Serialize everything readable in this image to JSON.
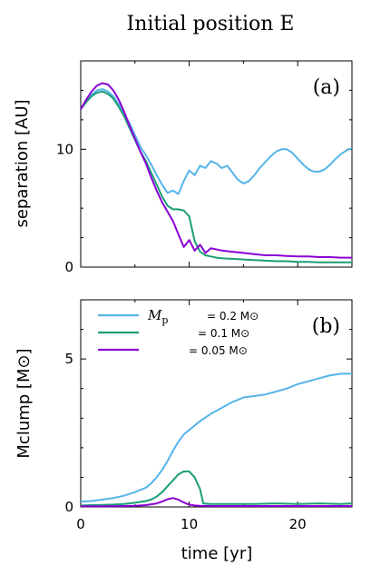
{
  "title": "Initial position E",
  "colors": {
    "m02": "#56b4e9",
    "m01": "#1b9e77",
    "m005": "#8a00d4"
  },
  "chart_data": [
    {
      "panel": "(a)",
      "type": "line",
      "ylabel": "separation [AU]",
      "xlabel": "",
      "xlim": [
        0,
        25
      ],
      "ylim": [
        0,
        17.5
      ],
      "yticks": [
        0,
        10
      ],
      "grid": false,
      "series": [
        {
          "name": "= 0.2 M⊙",
          "color_key": "m02",
          "x": [
            0,
            0.5,
            1,
            1.5,
            2,
            2.5,
            3,
            3.5,
            4,
            4.5,
            5,
            5.5,
            6,
            6.5,
            7,
            7.5,
            8,
            8.5,
            9,
            9.5,
            10,
            10.5,
            11,
            11.5,
            12,
            12.5,
            13,
            13.5,
            14,
            14.5,
            15,
            15.5,
            16,
            16.5,
            17,
            17.5,
            18,
            18.5,
            19,
            19.5,
            20,
            20.5,
            21,
            21.5,
            22,
            22.5,
            23,
            23.5,
            24,
            24.5,
            25
          ],
          "y": [
            13.4,
            14.0,
            14.6,
            15.0,
            15.1,
            14.9,
            14.5,
            13.8,
            13.0,
            12.2,
            11.2,
            10.2,
            9.5,
            8.7,
            7.8,
            7.0,
            6.3,
            6.5,
            6.2,
            7.3,
            8.2,
            7.8,
            8.6,
            8.4,
            9.0,
            8.8,
            8.4,
            8.6,
            8.0,
            7.4,
            7.1,
            7.3,
            7.8,
            8.4,
            8.9,
            9.4,
            9.8,
            10.0,
            10.0,
            9.7,
            9.2,
            8.7,
            8.3,
            8.1,
            8.1,
            8.3,
            8.7,
            9.2,
            9.6,
            9.9,
            10.1
          ]
        },
        {
          "name": "= 0.1 M⊙",
          "color_key": "m01",
          "x": [
            0,
            0.5,
            1,
            1.5,
            2,
            2.5,
            3,
            3.5,
            4,
            4.5,
            5,
            5.5,
            6,
            6.5,
            7,
            7.5,
            8,
            8.5,
            9,
            9.5,
            10,
            10.5,
            11,
            11.5,
            12,
            12.5,
            13,
            14,
            15,
            16,
            17,
            18,
            19,
            20,
            21,
            22,
            23,
            24,
            25
          ],
          "y": [
            13.4,
            14.0,
            14.5,
            14.8,
            14.9,
            14.7,
            14.3,
            13.6,
            12.8,
            11.8,
            10.8,
            9.8,
            9.0,
            8.0,
            7.0,
            6.0,
            5.2,
            4.9,
            4.9,
            4.8,
            4.3,
            2.2,
            1.3,
            1.0,
            0.9,
            0.8,
            0.75,
            0.7,
            0.65,
            0.6,
            0.55,
            0.5,
            0.5,
            0.45,
            0.45,
            0.4,
            0.4,
            0.4,
            0.4
          ]
        },
        {
          "name": "= 0.05 M⊙",
          "color_key": "m005",
          "x": [
            0,
            0.5,
            1,
            1.5,
            2,
            2.5,
            3,
            3.5,
            4,
            4.5,
            5,
            5.5,
            6,
            6.5,
            7,
            7.5,
            8,
            8.5,
            9,
            9.5,
            10,
            10.5,
            11,
            11.5,
            12,
            13,
            14,
            15,
            16,
            17,
            18,
            19,
            20,
            21,
            22,
            23,
            24,
            25
          ],
          "y": [
            13.4,
            14.2,
            14.9,
            15.4,
            15.6,
            15.5,
            15.0,
            14.2,
            13.2,
            12.0,
            10.9,
            9.8,
            8.8,
            7.6,
            6.5,
            5.5,
            4.7,
            3.9,
            2.8,
            1.7,
            2.3,
            1.4,
            1.9,
            1.2,
            1.6,
            1.4,
            1.3,
            1.2,
            1.1,
            1.0,
            1.0,
            0.95,
            0.9,
            0.9,
            0.85,
            0.85,
            0.8,
            0.8
          ]
        }
      ]
    },
    {
      "panel": "(b)",
      "type": "line",
      "ylabel": "Mclump [M⊙]",
      "xlabel": "time [yr]",
      "xlim": [
        0,
        25
      ],
      "ylim": [
        0,
        7
      ],
      "xticks": [
        0,
        10,
        20
      ],
      "yticks": [
        0,
        5
      ],
      "grid": false,
      "legend": {
        "placement": "top-left",
        "symbol": "Mp",
        "symbol_sub": "p"
      },
      "series": [
        {
          "name": "= 0.2 M⊙",
          "color_key": "m02",
          "x": [
            0,
            1,
            2,
            3,
            4,
            5,
            6,
            6.5,
            7,
            7.5,
            8,
            8.5,
            9,
            9.5,
            10,
            10.5,
            11,
            12,
            13,
            14,
            15,
            16,
            17,
            18,
            19,
            20,
            21,
            22,
            23,
            24,
            25
          ],
          "y": [
            0.18,
            0.2,
            0.25,
            0.3,
            0.38,
            0.5,
            0.65,
            0.8,
            1.0,
            1.25,
            1.55,
            1.9,
            2.2,
            2.45,
            2.6,
            2.75,
            2.9,
            3.15,
            3.35,
            3.55,
            3.7,
            3.75,
            3.8,
            3.9,
            4.0,
            4.15,
            4.25,
            4.35,
            4.45,
            4.5,
            4.5
          ]
        },
        {
          "name": "= 0.1 M⊙",
          "color_key": "m01",
          "x": [
            0,
            1,
            2,
            3,
            4,
            5,
            6,
            6.5,
            7,
            7.5,
            8,
            8.5,
            9,
            9.5,
            10,
            10.5,
            11,
            11.3,
            12,
            14,
            16,
            18,
            20,
            22,
            24,
            25
          ],
          "y": [
            0.05,
            0.06,
            0.07,
            0.08,
            0.1,
            0.14,
            0.2,
            0.25,
            0.35,
            0.5,
            0.7,
            0.9,
            1.1,
            1.2,
            1.2,
            1.0,
            0.6,
            0.12,
            0.1,
            0.1,
            0.1,
            0.12,
            0.1,
            0.12,
            0.1,
            0.12
          ]
        },
        {
          "name": "= 0.05 M⊙",
          "color_key": "m005",
          "x": [
            0,
            2,
            4,
            5,
            6,
            7,
            7.5,
            8,
            8.5,
            9,
            9.5,
            10,
            10.5,
            11,
            12,
            14,
            16,
            18,
            20,
            22,
            25
          ],
          "y": [
            0.02,
            0.02,
            0.03,
            0.04,
            0.06,
            0.12,
            0.18,
            0.26,
            0.3,
            0.25,
            0.15,
            0.08,
            0.05,
            0.04,
            0.03,
            0.03,
            0.03,
            0.03,
            0.03,
            0.03,
            0.03
          ]
        }
      ]
    }
  ]
}
